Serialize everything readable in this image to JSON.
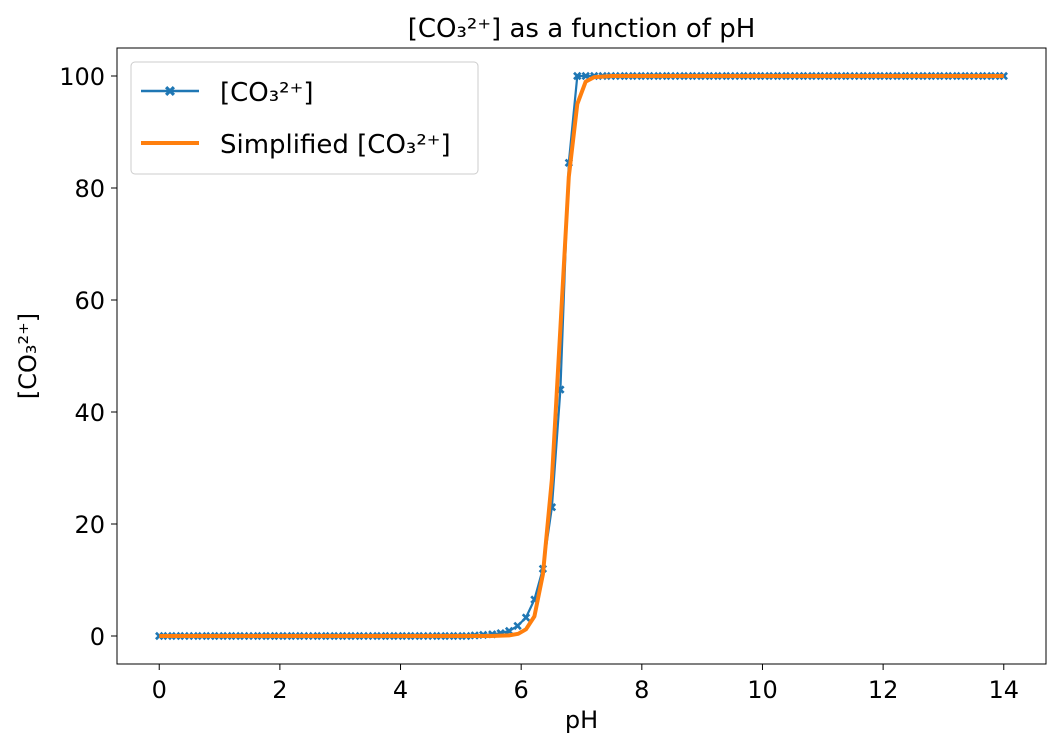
{
  "chart_data": {
    "type": "line",
    "title": "[CO₃²⁺] as a function of pH",
    "xlabel": "pH",
    "ylabel": "[CO₃²⁺]",
    "xlim": [
      -0.7,
      14.7
    ],
    "ylim": [
      -5,
      105
    ],
    "xticks": [
      0,
      2,
      4,
      6,
      8,
      10,
      12,
      14
    ],
    "yticks": [
      0,
      20,
      40,
      60,
      80,
      100
    ],
    "grid": false,
    "legend_position": "top-left",
    "series": [
      {
        "name": "[CO₃²⁺]",
        "color": "#1f77b4",
        "marker": "X",
        "x": [
          0,
          0.14,
          0.28,
          0.42,
          0.57,
          0.71,
          0.85,
          0.99,
          1.13,
          1.27,
          1.41,
          1.56,
          1.7,
          1.84,
          1.98,
          2.12,
          2.26,
          2.4,
          2.55,
          2.69,
          2.83,
          2.97,
          3.11,
          3.25,
          3.39,
          3.54,
          3.68,
          3.82,
          3.96,
          4.1,
          4.24,
          4.38,
          4.53,
          4.67,
          4.81,
          4.95,
          5.09,
          5.23,
          5.37,
          5.52,
          5.66,
          5.8,
          5.94,
          6.08,
          6.22,
          6.36,
          6.51,
          6.65,
          6.79,
          6.93,
          7.07,
          7.21,
          7.35,
          7.49,
          7.64,
          7.78,
          7.92,
          8.06,
          8.2,
          8.34,
          8.48,
          8.63,
          8.77,
          8.91,
          9.05,
          9.19,
          9.33,
          9.47,
          9.62,
          9.76,
          9.9,
          10.04,
          10.18,
          10.32,
          10.46,
          10.61,
          10.75,
          10.89,
          11.03,
          11.17,
          11.31,
          11.45,
          11.6,
          11.74,
          11.88,
          12.02,
          12.16,
          12.3,
          12.44,
          12.59,
          12.73,
          12.87,
          13.01,
          13.15,
          13.29,
          13.43,
          13.58,
          13.72,
          13.86,
          14
        ],
        "y": [
          0,
          0,
          0,
          0,
          0,
          0,
          0,
          0,
          0,
          0,
          0,
          0,
          0,
          0,
          0,
          0,
          0,
          0,
          0,
          0,
          0,
          0,
          0,
          0,
          0,
          0,
          0,
          0,
          0,
          0,
          0,
          0,
          0,
          0,
          0,
          0,
          0,
          0.1,
          0.2,
          0.3,
          0.5,
          0.9,
          1.8,
          3.3,
          6.5,
          12,
          23,
          44,
          84.5,
          100,
          100,
          100,
          100,
          100,
          100,
          100,
          100,
          100,
          100,
          100,
          100,
          100,
          100,
          100,
          100,
          100,
          100,
          100,
          100,
          100,
          100,
          100,
          100,
          100,
          100,
          100,
          100,
          100,
          100,
          100,
          100,
          100,
          100,
          100,
          100,
          100,
          100,
          100,
          100,
          100,
          100,
          100,
          100,
          100,
          100,
          100,
          100,
          100,
          100,
          100
        ]
      },
      {
        "name": "Simplified [CO₃²⁺]",
        "color": "#ff7f0e",
        "marker": "none",
        "x": [
          0,
          0.5,
          1,
          1.5,
          2,
          2.5,
          3,
          3.5,
          4,
          4.5,
          5,
          5.5,
          5.8,
          5.95,
          6.08,
          6.22,
          6.36,
          6.51,
          6.65,
          6.79,
          6.93,
          7.07,
          7.21,
          7.5,
          8,
          9,
          10,
          11,
          12,
          13,
          14
        ],
        "y": [
          0,
          0,
          0,
          0,
          0,
          0,
          0,
          0,
          0,
          0,
          0,
          0,
          0.1,
          0.4,
          1.2,
          3.5,
          11,
          28,
          55,
          82,
          95,
          99,
          99.8,
          100,
          100,
          100,
          100,
          100,
          100,
          100,
          100
        ]
      }
    ]
  }
}
